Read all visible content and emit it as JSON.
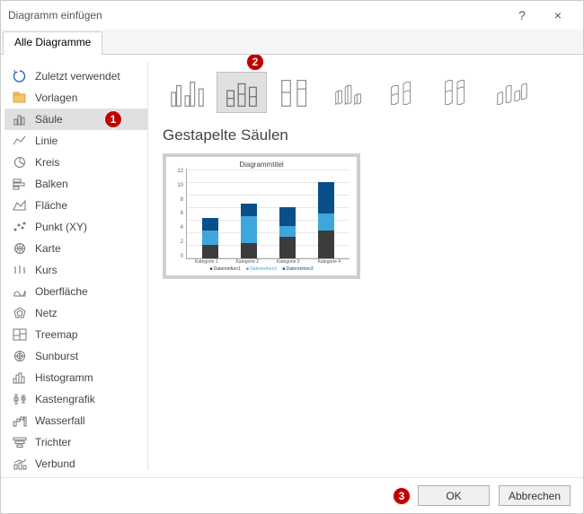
{
  "window": {
    "title": "Diagramm einfügen",
    "help": "?",
    "close": "×"
  },
  "tab": {
    "all": "Alle Diagramme"
  },
  "sidebar": {
    "items": [
      {
        "label": "Zuletzt verwendet"
      },
      {
        "label": "Vorlagen"
      },
      {
        "label": "Säule"
      },
      {
        "label": "Linie"
      },
      {
        "label": "Kreis"
      },
      {
        "label": "Balken"
      },
      {
        "label": "Fläche"
      },
      {
        "label": "Punkt (XY)"
      },
      {
        "label": "Karte"
      },
      {
        "label": "Kurs"
      },
      {
        "label": "Oberfläche"
      },
      {
        "label": "Netz"
      },
      {
        "label": "Treemap"
      },
      {
        "label": "Sunburst"
      },
      {
        "label": "Histogramm"
      },
      {
        "label": "Kastengrafik"
      },
      {
        "label": "Wasserfall"
      },
      {
        "label": "Trichter"
      },
      {
        "label": "Verbund"
      }
    ]
  },
  "main": {
    "preview_title": "Gestapelte Säulen",
    "chart": {
      "title": "Diagrammtitel",
      "ylim": [
        0,
        12
      ],
      "ystep": 2,
      "categories": [
        "Kategorie 1",
        "Kategorie 2",
        "Kategorie 3",
        "Kategorie 4"
      ],
      "series": [
        "Datenreihen1",
        "Datenreihen2",
        "Datenreihen3"
      ],
      "colors": [
        "#3c3c3c",
        "#3ea6dd",
        "#0b4f8a"
      ],
      "stacks": [
        [
          2.2,
          2.3,
          2
        ],
        [
          2.5,
          4.2,
          2
        ],
        [
          3.4,
          1.8,
          3
        ],
        [
          4.5,
          2.7,
          5
        ]
      ]
    }
  },
  "footer": {
    "ok": "OK",
    "cancel": "Abbrechen"
  },
  "callouts": {
    "c1": "1",
    "c2": "2",
    "c3": "3"
  }
}
